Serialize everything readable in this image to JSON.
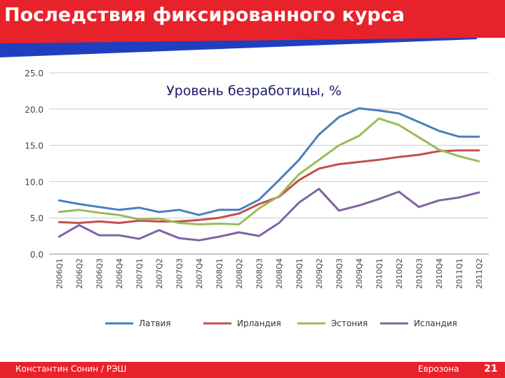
{
  "slide": {
    "title": "Последствия фиксированного курса",
    "footer_left": "Константин Сонин / РЭШ",
    "footer_right": "Еврозона",
    "page_number": "21",
    "title_bar_color": "#e8222a",
    "stripe_color": "#1f3fbf"
  },
  "chart_data": {
    "type": "line",
    "title": "Уровень безработицы, %",
    "xlabel": "",
    "ylabel": "",
    "ylim": [
      0,
      25
    ],
    "yticks": [
      "0.0",
      "5.0",
      "10.0",
      "15.0",
      "20.0",
      "25.0"
    ],
    "grid": true,
    "legend_position": "bottom",
    "categories": [
      "2006Q1",
      "2006Q2",
      "2006Q3",
      "2006Q4",
      "2007Q1",
      "2007Q2",
      "2007Q3",
      "2007Q4",
      "2008Q1",
      "2008Q2",
      "2008Q3",
      "2008Q4",
      "2009Q1",
      "2009Q2",
      "2009Q3",
      "2009Q4",
      "2010Q1",
      "2010Q2",
      "2010Q3",
      "2010Q4",
      "2011Q1",
      "2011Q2"
    ],
    "series": [
      {
        "name": "Латвия",
        "color": "#4b7dbd",
        "values": [
          7.4,
          6.9,
          6.5,
          6.1,
          6.4,
          5.8,
          6.1,
          5.4,
          6.1,
          6.1,
          7.5,
          10.2,
          13.0,
          16.5,
          18.9,
          20.1,
          19.8,
          19.4,
          18.2,
          17.0,
          16.2,
          16.2
        ]
      },
      {
        "name": "Ирландия",
        "color": "#c0504d",
        "values": [
          4.4,
          4.3,
          4.5,
          4.3,
          4.6,
          4.5,
          4.5,
          4.7,
          5.0,
          5.6,
          6.9,
          7.9,
          10.2,
          11.8,
          12.4,
          12.7,
          13.0,
          13.4,
          13.7,
          14.2,
          14.3,
          14.3
        ]
      },
      {
        "name": "Эстония",
        "color": "#9bbb59",
        "values": [
          5.8,
          6.1,
          5.7,
          5.4,
          4.8,
          4.9,
          4.3,
          4.1,
          4.2,
          4.1,
          6.3,
          8.0,
          11.0,
          13.0,
          15.0,
          16.3,
          18.7,
          17.8,
          16.1,
          14.4,
          13.5,
          12.8
        ]
      },
      {
        "name": "Исландия",
        "color": "#8064a2",
        "values": [
          2.4,
          4.0,
          2.6,
          2.6,
          2.1,
          3.3,
          2.2,
          1.9,
          2.4,
          3.0,
          2.5,
          4.3,
          7.1,
          9.0,
          6.0,
          6.7,
          7.6,
          8.6,
          6.5,
          7.4,
          7.8,
          8.5
        ]
      }
    ]
  }
}
